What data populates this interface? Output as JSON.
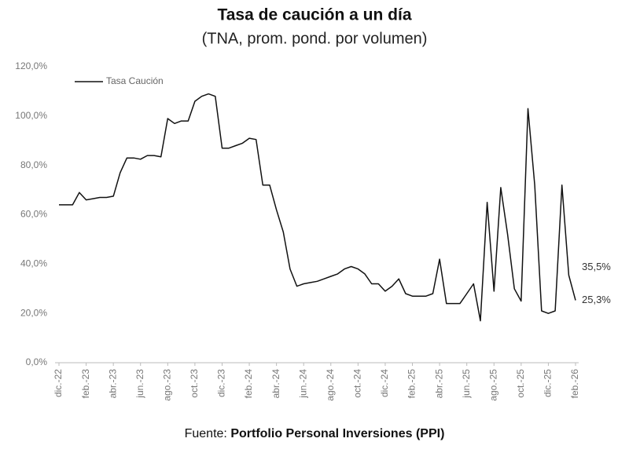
{
  "chart_data": {
    "type": "line",
    "title": "Tasa de caución a un día",
    "subtitle": "(TNA, prom. pond. por volumen)",
    "source_prefix": "Fuente:",
    "source": "Portfolio Personal Inversiones (PPI)",
    "categories": [
      "dic.-22",
      null,
      null,
      null,
      "feb.-23",
      null,
      null,
      null,
      "abr.-23",
      null,
      null,
      null,
      "jun.-23",
      null,
      null,
      null,
      "ago.-23",
      null,
      null,
      null,
      "oct.-23",
      null,
      null,
      null,
      "dic.-23",
      null,
      null,
      null,
      "feb.-24",
      null,
      null,
      null,
      "abr.-24",
      null,
      null,
      null,
      "jun.-24",
      null,
      null,
      null,
      "ago.-24",
      null,
      null,
      null,
      "oct.-24",
      null,
      null,
      null,
      "dic.-24",
      null,
      null,
      null,
      "feb.-25",
      null,
      null,
      null,
      "abr.-25",
      null,
      null,
      null,
      "jun.-25",
      null,
      null,
      null,
      "ago.-25",
      null,
      null,
      null,
      "oct.-25",
      null,
      null,
      null,
      "dic.-25",
      null,
      null,
      null,
      "feb.-26"
    ],
    "series": [
      {
        "name": "Tasa Caución",
        "color": "#111111",
        "values": [
          64,
          64,
          64,
          69,
          66,
          66.5,
          67,
          67,
          67.5,
          77,
          83,
          83,
          82.5,
          84,
          84,
          83.5,
          99,
          97,
          98,
          98,
          106,
          108,
          109,
          108,
          87,
          87,
          88,
          89,
          91,
          90.5,
          72,
          72,
          62,
          53,
          38,
          31,
          32,
          32.5,
          33,
          34,
          35,
          36,
          38,
          39,
          38,
          36,
          32,
          32,
          29,
          31,
          34,
          28,
          27,
          27,
          27,
          28,
          42,
          24,
          24,
          24,
          28,
          32,
          17,
          65,
          29,
          71,
          52,
          30,
          25,
          103,
          72,
          21,
          20,
          21,
          72,
          35.5,
          25.3
        ],
        "value_labels": [
          null,
          null,
          null,
          null,
          null,
          null,
          null,
          null,
          null,
          null,
          null,
          null,
          null,
          null,
          null,
          null,
          null,
          null,
          null,
          null,
          null,
          null,
          null,
          null,
          null,
          null,
          null,
          null,
          null,
          null,
          null,
          null,
          null,
          null,
          null,
          null,
          null,
          null,
          null,
          null,
          null,
          null,
          null,
          null,
          null,
          null,
          null,
          null,
          null,
          null,
          null,
          null,
          null,
          null,
          null,
          null,
          null,
          null,
          null,
          null,
          null,
          null,
          null,
          null,
          null,
          null,
          null,
          null,
          null,
          null,
          null,
          null,
          null,
          null,
          null,
          "35,5%",
          "25,3%"
        ]
      }
    ],
    "ylim": [
      0,
      120
    ],
    "yticks": [
      {
        "value": 0,
        "label": "0,0%"
      },
      {
        "value": 20,
        "label": "20,0%"
      },
      {
        "value": 40,
        "label": "40,0%"
      },
      {
        "value": 60,
        "label": "60,0%"
      },
      {
        "value": 80,
        "label": "80,0%"
      },
      {
        "value": 100,
        "label": "100,0%"
      },
      {
        "value": 120,
        "label": "120,0%"
      }
    ],
    "grid": false,
    "legend": "upper left"
  }
}
